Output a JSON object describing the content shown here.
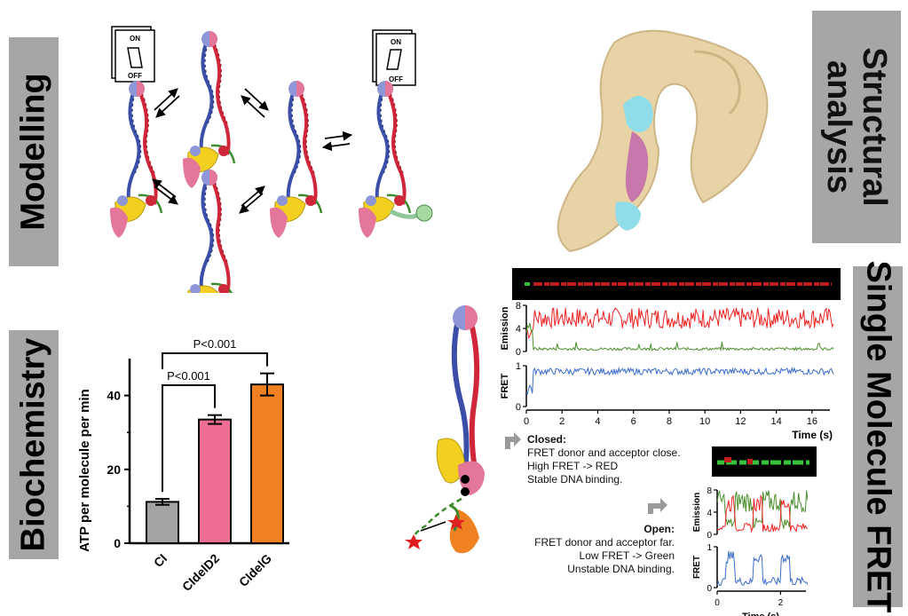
{
  "labels": {
    "modelling": "Modelling",
    "structural_line1": "Structural",
    "structural_line2": "analysis",
    "biochemistry": "Biochemistry",
    "single_molecule": "Single Molecule FRET"
  },
  "switches": {
    "on": "ON",
    "off": "OFF"
  },
  "colors": {
    "label_bg": "#a6a6a6",
    "blue_strand": "#3b4fa8",
    "red_strand": "#d0263a",
    "pink_domain": "#e4769a",
    "yellow_domain": "#f3cf1f",
    "green_linker": "#3d8a2e",
    "surface": "#e8d3a6",
    "cyan_dna": "#8fdde8",
    "mauve_dna": "#c777a9",
    "bar_ci": "#a3a3a3",
    "bar_cideld2": "#ee6e93",
    "bar_cidelg": "#f08122",
    "trace_red": "#ee2222",
    "trace_green": "#4a8f2c",
    "trace_blue": "#3a6ccc"
  },
  "chart_data": [
    {
      "type": "bar",
      "title": "",
      "xlabel": "",
      "ylabel": "ATP per molecule per min",
      "categories": [
        "CI",
        "CIdelD2",
        "CIdelG"
      ],
      "values": [
        11.2,
        33.5,
        43
      ],
      "errors": [
        0.8,
        1.2,
        3
      ],
      "ylim": [
        0,
        50
      ],
      "yticks": [
        "0",
        "20",
        "40"
      ],
      "annotations": [
        "P<0.001",
        "P<0.001"
      ],
      "colors": [
        "#a3a3a3",
        "#ee6e93",
        "#f08122"
      ]
    },
    {
      "type": "line",
      "title": "",
      "xlabel": "Time (s)",
      "xticks": [
        "0",
        "2",
        "4",
        "6",
        "8",
        "10",
        "12",
        "14",
        "16"
      ],
      "xlim": [
        0,
        17
      ],
      "panels": [
        {
          "ylabel": "Emission",
          "ylim": [
            0,
            8
          ],
          "yticks": [
            "0",
            "4",
            "8"
          ]
        },
        {
          "ylabel": "FRET",
          "ylim": [
            0,
            1
          ],
          "yticks": [
            "0",
            "1"
          ]
        }
      ]
    },
    {
      "type": "line",
      "title": "",
      "xlabel": "Time (s)",
      "xticks": [
        "0",
        "2"
      ],
      "xlim": [
        0,
        2.8
      ],
      "panels": [
        {
          "ylabel": "Emission",
          "ylim": [
            0,
            8
          ],
          "yticks": [
            "0",
            "4",
            "8"
          ]
        },
        {
          "ylabel": "FRET",
          "ylim": [
            0,
            1
          ],
          "yticks": [
            "0",
            "1"
          ]
        }
      ]
    }
  ],
  "closed_state": {
    "title": "Closed:",
    "lines": [
      "FRET donor and acceptor close.",
      "High FRET -> RED",
      "Stable DNA binding."
    ]
  },
  "open_state": {
    "title": "Open:",
    "lines": [
      "FRET donor and acceptor far.",
      "Low FRET -> Green",
      "Unstable DNA binding."
    ]
  }
}
